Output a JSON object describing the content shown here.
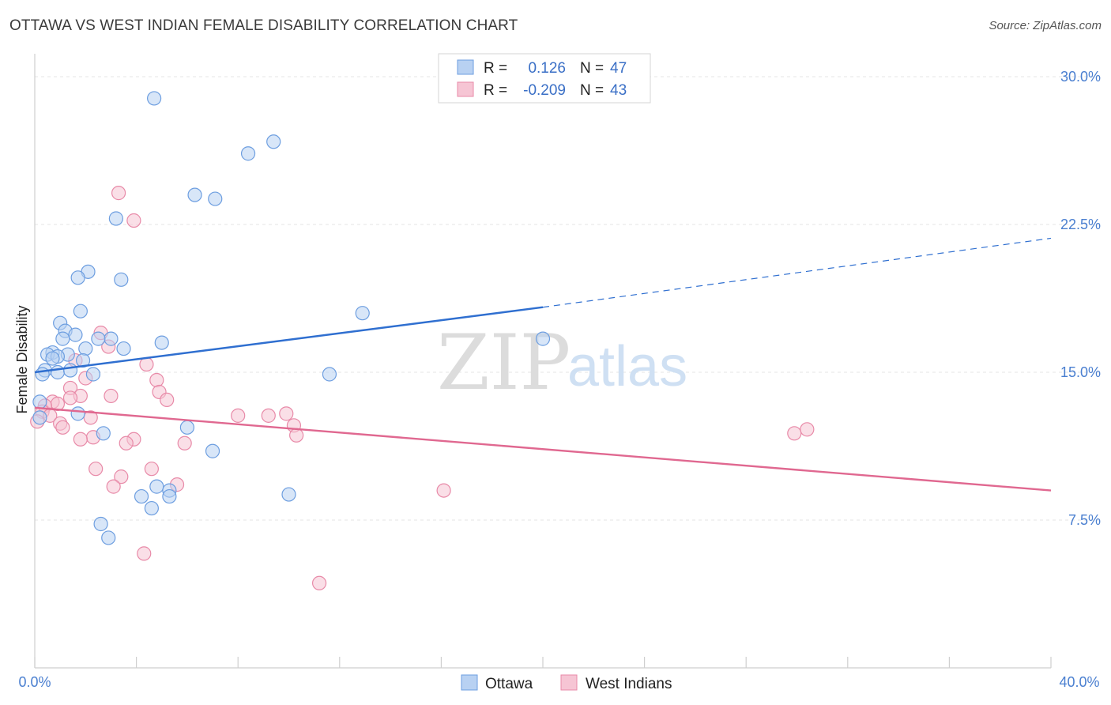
{
  "header": {
    "title": "OTTAWA VS WEST INDIAN FEMALE DISABILITY CORRELATION CHART",
    "source": "Source: ZipAtlas.com"
  },
  "colors": {
    "ottawa_fill": "#b8d1f2",
    "ottawa_stroke": "#6d9ee0",
    "ottawa_line": "#2f6fd0",
    "westindian_fill": "#f6c5d4",
    "westindian_stroke": "#e88aa8",
    "westindian_line": "#e06890",
    "grid": "#e4e4e4",
    "tick_text": "#4a7fd0"
  },
  "watermark": {
    "zip": "ZIP",
    "atlas": "atlas"
  },
  "legend": {
    "rows": [
      {
        "r_label": "R =",
        "r_value": "0.126",
        "n_label": "N =",
        "n_value": "47"
      },
      {
        "r_label": "R =",
        "r_value": "-0.209",
        "n_label": "N =",
        "n_value": "43"
      }
    ]
  },
  "bottom_legend": {
    "items": [
      "Ottawa",
      "West Indians"
    ]
  },
  "chart_data": {
    "type": "scatter",
    "title": "OTTAWA VS WEST INDIAN FEMALE DISABILITY CORRELATION CHART",
    "xlabel": "",
    "ylabel": "Female Disability",
    "xlim": [
      0,
      40
    ],
    "ylim": [
      0,
      31
    ],
    "x_tick_labels": [
      "0.0%",
      "40.0%"
    ],
    "y_ticks": [
      7.5,
      15.0,
      22.5,
      30.0
    ],
    "y_tick_labels": [
      "7.5%",
      "15.0%",
      "22.5%",
      "30.0%"
    ],
    "series": [
      {
        "name": "Ottawa",
        "r": 0.126,
        "n": 47,
        "trend": {
          "x0": 0,
          "y0": 15.0,
          "x1": 20,
          "y1": 18.3,
          "dash_x1": 40,
          "dash_y1": 21.8
        },
        "points": [
          [
            4.7,
            28.9
          ],
          [
            9.4,
            26.7
          ],
          [
            8.4,
            26.1
          ],
          [
            6.3,
            24.0
          ],
          [
            7.1,
            23.8
          ],
          [
            3.2,
            22.8
          ],
          [
            2.1,
            20.1
          ],
          [
            1.7,
            19.8
          ],
          [
            3.4,
            19.7
          ],
          [
            1.8,
            18.1
          ],
          [
            12.9,
            18.0
          ],
          [
            1.0,
            17.5
          ],
          [
            1.2,
            17.1
          ],
          [
            1.6,
            16.9
          ],
          [
            1.1,
            16.7
          ],
          [
            3.0,
            16.7
          ],
          [
            2.5,
            16.7
          ],
          [
            5.0,
            16.5
          ],
          [
            20.0,
            16.7
          ],
          [
            2.0,
            16.2
          ],
          [
            3.5,
            16.2
          ],
          [
            0.7,
            16.0
          ],
          [
            0.5,
            15.9
          ],
          [
            1.3,
            15.9
          ],
          [
            0.9,
            15.8
          ],
          [
            0.7,
            15.7
          ],
          [
            1.9,
            15.6
          ],
          [
            0.4,
            15.1
          ],
          [
            0.9,
            15.0
          ],
          [
            1.4,
            15.1
          ],
          [
            2.3,
            14.9
          ],
          [
            0.3,
            14.9
          ],
          [
            11.6,
            14.9
          ],
          [
            0.2,
            13.5
          ],
          [
            1.7,
            12.9
          ],
          [
            0.2,
            12.7
          ],
          [
            6.0,
            12.2
          ],
          [
            2.7,
            11.9
          ],
          [
            7.0,
            11.0
          ],
          [
            4.8,
            9.2
          ],
          [
            5.3,
            9.0
          ],
          [
            4.2,
            8.7
          ],
          [
            5.3,
            8.7
          ],
          [
            10.0,
            8.8
          ],
          [
            4.6,
            8.1
          ],
          [
            2.6,
            7.3
          ],
          [
            2.9,
            6.6
          ]
        ]
      },
      {
        "name": "West Indians",
        "r": -0.209,
        "n": 43,
        "trend": {
          "x0": 0,
          "y0": 13.2,
          "x1": 40,
          "y1": 9.0
        },
        "points": [
          [
            3.3,
            24.1
          ],
          [
            3.9,
            22.7
          ],
          [
            2.6,
            17.0
          ],
          [
            2.9,
            16.3
          ],
          [
            1.6,
            15.6
          ],
          [
            4.4,
            15.4
          ],
          [
            4.8,
            14.6
          ],
          [
            2.0,
            14.7
          ],
          [
            1.4,
            14.2
          ],
          [
            4.9,
            14.0
          ],
          [
            3.0,
            13.8
          ],
          [
            1.8,
            13.8
          ],
          [
            1.4,
            13.7
          ],
          [
            5.2,
            13.6
          ],
          [
            0.7,
            13.5
          ],
          [
            0.9,
            13.4
          ],
          [
            0.4,
            13.3
          ],
          [
            0.3,
            13.0
          ],
          [
            9.9,
            12.9
          ],
          [
            0.6,
            12.8
          ],
          [
            9.2,
            12.8
          ],
          [
            8.0,
            12.8
          ],
          [
            2.2,
            12.7
          ],
          [
            0.1,
            12.5
          ],
          [
            1.0,
            12.4
          ],
          [
            10.2,
            12.3
          ],
          [
            1.1,
            12.2
          ],
          [
            10.3,
            11.8
          ],
          [
            29.9,
            11.9
          ],
          [
            30.4,
            12.1
          ],
          [
            2.3,
            11.7
          ],
          [
            3.9,
            11.6
          ],
          [
            1.8,
            11.6
          ],
          [
            5.9,
            11.4
          ],
          [
            3.6,
            11.4
          ],
          [
            2.4,
            10.1
          ],
          [
            4.6,
            10.1
          ],
          [
            3.4,
            9.7
          ],
          [
            5.6,
            9.3
          ],
          [
            3.1,
            9.2
          ],
          [
            16.1,
            9.0
          ],
          [
            4.3,
            5.8
          ],
          [
            11.2,
            4.3
          ]
        ]
      }
    ]
  }
}
